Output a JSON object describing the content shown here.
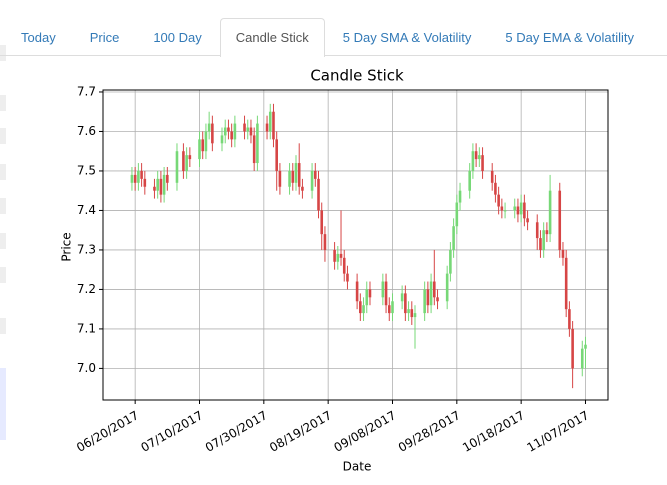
{
  "tabs": [
    "Today",
    "Price",
    "100 Day",
    "Candle Stick",
    "5 Day SMA & Volatility",
    "5 Day EMA & Volatility"
  ],
  "active_tab": 3,
  "chart_data": {
    "type": "candlestick",
    "title": "Candle Stick",
    "x_label": "Date",
    "y_label": "Price",
    "up_color": "#77d877",
    "down_color": "#d64545",
    "grid": true,
    "xlim": [
      "2017-06-10",
      "2017-11-14"
    ],
    "xticks": [
      {
        "value": "2017-06-20",
        "label": "06/20/2017"
      },
      {
        "value": "2017-07-10",
        "label": "07/10/2017"
      },
      {
        "value": "2017-07-30",
        "label": "07/30/2017"
      },
      {
        "value": "2017-08-19",
        "label": "08/19/2017"
      },
      {
        "value": "2017-09-08",
        "label": "09/08/2017"
      },
      {
        "value": "2017-09-28",
        "label": "09/28/2017"
      },
      {
        "value": "2017-10-18",
        "label": "10/18/2017"
      },
      {
        "value": "2017-11-07",
        "label": "11/07/2017"
      }
    ],
    "ylim": [
      6.92,
      7.705
    ],
    "yticks": [
      {
        "value": 7.0,
        "label": "7.0"
      },
      7.1,
      7.2,
      7.3,
      7.4,
      7.5,
      7.6,
      7.7
    ],
    "x": [
      "2017-06-19",
      "2017-06-20",
      "2017-06-21",
      "2017-06-22",
      "2017-06-23",
      "2017-06-26",
      "2017-06-27",
      "2017-06-28",
      "2017-06-29",
      "2017-06-30",
      "2017-07-03",
      "2017-07-05",
      "2017-07-06",
      "2017-07-07",
      "2017-07-10",
      "2017-07-11",
      "2017-07-12",
      "2017-07-13",
      "2017-07-14",
      "2017-07-17",
      "2017-07-18",
      "2017-07-19",
      "2017-07-20",
      "2017-07-21",
      "2017-07-24",
      "2017-07-25",
      "2017-07-26",
      "2017-07-27",
      "2017-07-28",
      "2017-07-31",
      "2017-08-01",
      "2017-08-02",
      "2017-08-03",
      "2017-08-04",
      "2017-08-07",
      "2017-08-08",
      "2017-08-09",
      "2017-08-10",
      "2017-08-11",
      "2017-08-14",
      "2017-08-15",
      "2017-08-16",
      "2017-08-17",
      "2017-08-18",
      "2017-08-21",
      "2017-08-22",
      "2017-08-23",
      "2017-08-24",
      "2017-08-25",
      "2017-08-28",
      "2017-08-29",
      "2017-08-30",
      "2017-08-31",
      "2017-09-01",
      "2017-09-05",
      "2017-09-06",
      "2017-09-07",
      "2017-09-08",
      "2017-09-11",
      "2017-09-12",
      "2017-09-13",
      "2017-09-14",
      "2017-09-15",
      "2017-09-18",
      "2017-09-19",
      "2017-09-20",
      "2017-09-21",
      "2017-09-22",
      "2017-09-25",
      "2017-09-26",
      "2017-09-27",
      "2017-09-28",
      "2017-09-29",
      "2017-10-02",
      "2017-10-03",
      "2017-10-04",
      "2017-10-05",
      "2017-10-06",
      "2017-10-09",
      "2017-10-10",
      "2017-10-11",
      "2017-10-12",
      "2017-10-13",
      "2017-10-16",
      "2017-10-17",
      "2017-10-18",
      "2017-10-19",
      "2017-10-20",
      "2017-10-23",
      "2017-10-24",
      "2017-10-25",
      "2017-10-26",
      "2017-10-27",
      "2017-10-30",
      "2017-10-31",
      "2017-11-01",
      "2017-11-02",
      "2017-11-03",
      "2017-11-06",
      "2017-11-07"
    ],
    "open": [
      7.47,
      7.49,
      7.47,
      7.5,
      7.48,
      7.46,
      7.45,
      7.48,
      7.44,
      7.49,
      7.47,
      7.55,
      7.5,
      7.54,
      7.53,
      7.58,
      7.55,
      7.6,
      7.62,
      7.57,
      7.59,
      7.61,
      7.6,
      7.58,
      7.62,
      7.6,
      7.61,
      7.59,
      7.52,
      7.62,
      7.6,
      7.65,
      7.58,
      7.5,
      7.46,
      7.5,
      7.47,
      7.52,
      7.46,
      7.45,
      7.5,
      7.48,
      7.4,
      7.34,
      7.3,
      7.27,
      7.29,
      7.28,
      7.24,
      7.22,
      7.17,
      7.14,
      7.16,
      7.2,
      7.18,
      7.22,
      7.16,
      7.14,
      7.17,
      7.19,
      7.14,
      7.15,
      7.13,
      7.14,
      7.2,
      7.16,
      7.22,
      7.18,
      7.17,
      7.24,
      7.3,
      7.36,
      7.42,
      7.45,
      7.5,
      7.55,
      7.53,
      7.54,
      7.5,
      7.47,
      7.44,
      7.41,
      7.4,
      7.4,
      7.41,
      7.39,
      7.42,
      7.38,
      7.37,
      7.33,
      7.3,
      7.35,
      7.34,
      7.45,
      7.3,
      7.28,
      7.15,
      7.1,
      7.0,
      7.05
    ],
    "high": [
      7.51,
      7.51,
      7.52,
      7.52,
      7.5,
      7.48,
      7.5,
      7.5,
      7.51,
      7.51,
      7.57,
      7.57,
      7.56,
      7.56,
      7.6,
      7.6,
      7.62,
      7.65,
      7.64,
      7.61,
      7.63,
      7.63,
      7.62,
      7.64,
      7.64,
      7.63,
      7.63,
      7.61,
      7.64,
      7.64,
      7.67,
      7.67,
      7.6,
      7.52,
      7.52,
      7.52,
      7.54,
      7.57,
      7.48,
      7.52,
      7.52,
      7.5,
      7.42,
      7.36,
      7.32,
      7.31,
      7.4,
      7.3,
      7.26,
      7.24,
      7.19,
      7.18,
      7.22,
      7.22,
      7.24,
      7.24,
      7.18,
      7.19,
      7.21,
      7.21,
      7.17,
      7.17,
      7.16,
      7.22,
      7.22,
      7.24,
      7.3,
      7.2,
      7.26,
      7.32,
      7.38,
      7.44,
      7.47,
      7.52,
      7.57,
      7.57,
      7.56,
      7.56,
      7.52,
      7.49,
      7.46,
      7.43,
      7.42,
      7.43,
      7.43,
      7.44,
      7.44,
      7.4,
      7.39,
      7.35,
      7.37,
      7.37,
      7.49,
      7.47,
      7.32,
      7.3,
      7.17,
      7.12,
      7.07,
      7.08
    ],
    "low": [
      7.45,
      7.45,
      7.45,
      7.46,
      7.44,
      7.43,
      7.43,
      7.42,
      7.42,
      7.45,
      7.45,
      7.48,
      7.48,
      7.51,
      7.51,
      7.53,
      7.53,
      7.58,
      7.55,
      7.55,
      7.57,
      7.58,
      7.56,
      7.56,
      7.58,
      7.58,
      7.57,
      7.5,
      7.5,
      7.58,
      7.58,
      7.56,
      7.45,
      7.44,
      7.44,
      7.45,
      7.45,
      7.44,
      7.43,
      7.43,
      7.46,
      7.38,
      7.3,
      7.27,
      7.25,
      7.25,
      7.26,
      7.22,
      7.2,
      7.15,
      7.12,
      7.12,
      7.14,
      7.16,
      7.16,
      7.14,
      7.12,
      7.12,
      7.15,
      7.12,
      7.12,
      7.11,
      7.05,
      7.12,
      7.14,
      7.14,
      7.16,
      7.15,
      7.15,
      7.22,
      7.28,
      7.34,
      7.4,
      7.43,
      7.48,
      7.51,
      7.51,
      7.48,
      7.45,
      7.42,
      7.39,
      7.38,
      7.38,
      7.38,
      7.37,
      7.37,
      7.36,
      7.35,
      7.3,
      7.28,
      7.28,
      7.32,
      7.32,
      7.28,
      7.26,
      7.13,
      7.08,
      6.95,
      6.98,
      7.0
    ],
    "close": [
      7.49,
      7.47,
      7.5,
      7.48,
      7.46,
      7.45,
      7.48,
      7.44,
      7.49,
      7.47,
      7.55,
      7.5,
      7.54,
      7.53,
      7.58,
      7.55,
      7.6,
      7.62,
      7.57,
      7.59,
      7.61,
      7.6,
      7.58,
      7.62,
      7.6,
      7.61,
      7.59,
      7.52,
      7.62,
      7.6,
      7.65,
      7.58,
      7.5,
      7.46,
      7.5,
      7.47,
      7.52,
      7.46,
      7.45,
      7.5,
      7.48,
      7.4,
      7.34,
      7.3,
      7.27,
      7.29,
      7.28,
      7.24,
      7.22,
      7.17,
      7.14,
      7.16,
      7.2,
      7.18,
      7.22,
      7.16,
      7.14,
      7.17,
      7.19,
      7.14,
      7.15,
      7.13,
      7.14,
      7.2,
      7.16,
      7.22,
      7.18,
      7.17,
      7.24,
      7.3,
      7.36,
      7.42,
      7.45,
      7.5,
      7.55,
      7.53,
      7.54,
      7.5,
      7.47,
      7.44,
      7.41,
      7.4,
      7.4,
      7.41,
      7.39,
      7.42,
      7.38,
      7.37,
      7.33,
      7.3,
      7.35,
      7.34,
      7.45,
      7.3,
      7.28,
      7.15,
      7.1,
      7.0,
      7.05,
      7.06
    ]
  }
}
